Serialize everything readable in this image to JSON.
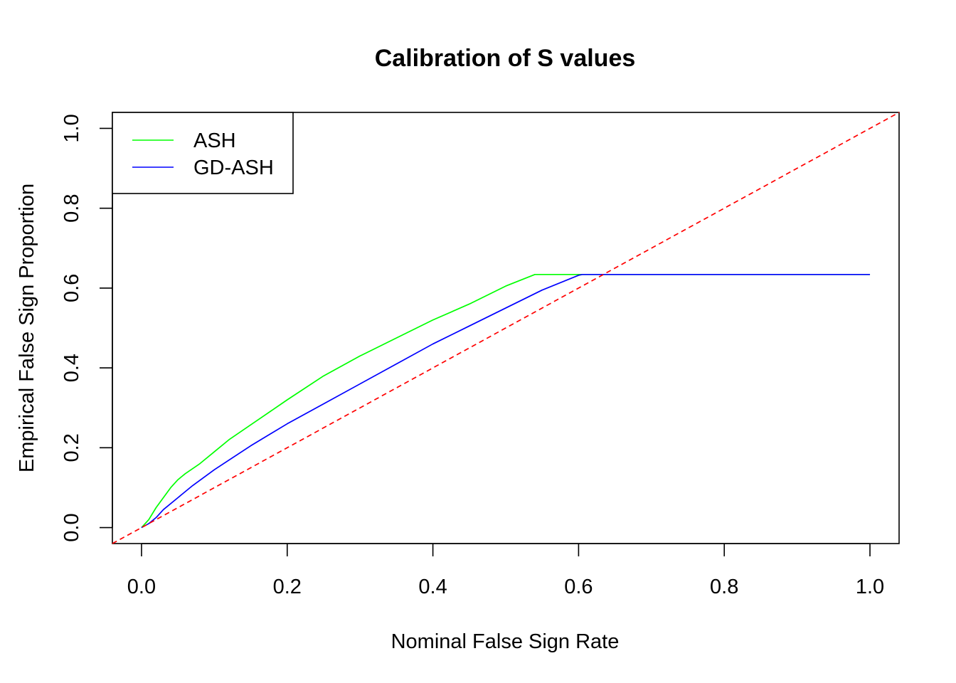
{
  "chart_data": {
    "type": "line",
    "title": "Calibration of S values",
    "xlabel": "Nominal False Sign Rate",
    "ylabel": "Empirical False Sign Proportion",
    "xlim": [
      -0.04,
      1.04
    ],
    "ylim": [
      -0.04,
      1.04
    ],
    "x_ticks": [
      0.0,
      0.2,
      0.4,
      0.6,
      0.8,
      1.0
    ],
    "x_tick_labels": [
      "0.0",
      "0.2",
      "0.4",
      "0.6",
      "0.8",
      "1.0"
    ],
    "y_ticks": [
      0.0,
      0.2,
      0.4,
      0.6,
      0.8,
      1.0
    ],
    "y_tick_labels": [
      "0.0",
      "0.2",
      "0.4",
      "0.6",
      "0.8",
      "1.0"
    ],
    "grid": false,
    "legend_position": "top-left",
    "series": [
      {
        "name": "ASH",
        "color": "#00ff00",
        "x": [
          0.0,
          0.01,
          0.02,
          0.03,
          0.04,
          0.05,
          0.06,
          0.08,
          0.1,
          0.12,
          0.14,
          0.16,
          0.18,
          0.2,
          0.25,
          0.3,
          0.35,
          0.4,
          0.45,
          0.5,
          0.54,
          0.56,
          0.6,
          0.605,
          0.65,
          0.7,
          0.8,
          0.9,
          1.0
        ],
        "y": [
          0.0,
          0.02,
          0.05,
          0.075,
          0.1,
          0.12,
          0.135,
          0.16,
          0.19,
          0.22,
          0.245,
          0.27,
          0.295,
          0.32,
          0.38,
          0.43,
          0.475,
          0.52,
          0.56,
          0.605,
          0.634,
          0.634,
          0.634,
          0.634,
          0.634,
          0.634,
          0.634,
          0.634,
          0.634
        ]
      },
      {
        "name": "GD-ASH",
        "color": "#0000ff",
        "x": [
          0.0,
          0.01,
          0.02,
          0.03,
          0.05,
          0.07,
          0.1,
          0.15,
          0.2,
          0.25,
          0.3,
          0.35,
          0.4,
          0.45,
          0.5,
          0.55,
          0.6,
          0.605,
          0.65,
          0.7,
          0.8,
          0.9,
          1.0
        ],
        "y": [
          0.0,
          0.01,
          0.025,
          0.045,
          0.075,
          0.105,
          0.145,
          0.205,
          0.26,
          0.31,
          0.36,
          0.41,
          0.46,
          0.505,
          0.55,
          0.595,
          0.632,
          0.634,
          0.634,
          0.634,
          0.634,
          0.634,
          0.634
        ]
      },
      {
        "color": "#ff0000",
        "dashed": true,
        "x": [
          -0.04,
          1.04
        ],
        "y": [
          -0.04,
          1.04
        ]
      }
    ]
  }
}
